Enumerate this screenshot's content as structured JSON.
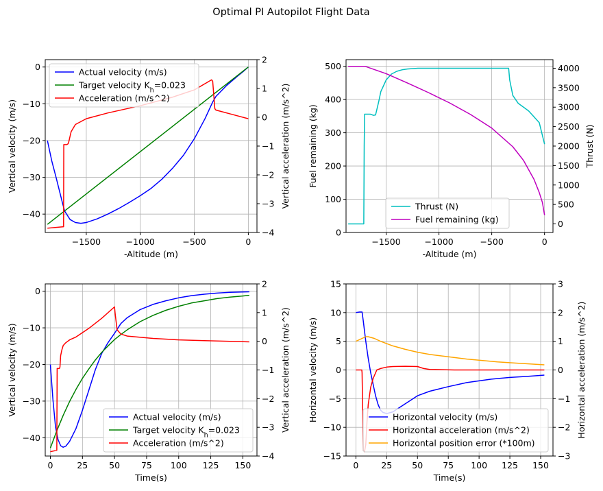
{
  "figure": {
    "title": "Optimal PI Autopilot Flight Data"
  },
  "chart_data": [
    {
      "type": "line",
      "xlabel": "-Altitude (m)",
      "ylabel": "Vertical velocity (m/s)",
      "y2label": "Vertical acceleration (m/s^2)",
      "xlim": [
        -1880,
        80
      ],
      "ylim": [
        -45,
        2
      ],
      "y2lim": [
        -4,
        2
      ],
      "xticks": [
        -1500,
        -1000,
        -500,
        0
      ],
      "yticks": [
        -40,
        -30,
        -20,
        -10,
        0
      ],
      "y2ticks": [
        -4,
        -3,
        -2,
        -1,
        0,
        1,
        2
      ],
      "grid": true,
      "legend_position": "upper left",
      "series": [
        {
          "name": "Actual velocity (m/s)",
          "color": "#0000ff",
          "axis": "y",
          "x": [
            -1860,
            -1820,
            -1780,
            -1750,
            -1720,
            -1700,
            -1650,
            -1600,
            -1550,
            -1500,
            -1400,
            -1300,
            -1200,
            -1100,
            -1000,
            -900,
            -800,
            -700,
            -600,
            -500,
            -400,
            -330,
            -300,
            -200,
            -100,
            -50,
            0
          ],
          "y": [
            -20,
            -25.5,
            -30,
            -33.5,
            -37,
            -39.2,
            -41.5,
            -42.3,
            -42.5,
            -42.3,
            -41.3,
            -40,
            -38.5,
            -36.8,
            -35,
            -33,
            -30.5,
            -27.5,
            -24,
            -19.5,
            -14,
            -9.5,
            -8,
            -5,
            -2.5,
            -1.3,
            0
          ]
        },
        {
          "name": "Target velocity K$_h$=0.023",
          "color": "#008000",
          "axis": "y",
          "x": [
            -1860,
            0
          ],
          "y": [
            -42.8,
            0
          ]
        },
        {
          "name": "Acceleration (m/s^2)",
          "color": "#ff0000",
          "axis": "y2",
          "x": [
            -1860,
            -1710,
            -1708,
            -1700,
            -1690,
            -1680,
            -1672,
            -1665,
            -1640,
            -1600,
            -1500,
            -1300,
            -1000,
            -700,
            -500,
            -340,
            -330,
            -310,
            -300,
            -250,
            -150,
            0
          ],
          "y": [
            -3.85,
            -3.8,
            -0.95,
            -0.95,
            -0.95,
            -0.95,
            -0.93,
            -0.9,
            -0.5,
            -0.25,
            -0.05,
            0.15,
            0.4,
            0.7,
            0.95,
            1.3,
            1.25,
            0.3,
            0.25,
            0.2,
            0.1,
            -0.05
          ]
        }
      ]
    },
    {
      "type": "line",
      "xlabel": "-Altitude (m)",
      "ylabel": "Fuel remaining (kg)",
      "y2label": "Thrust (N)",
      "xlim": [
        -1880,
        80
      ],
      "ylim": [
        0,
        520
      ],
      "y2lim": [
        -220,
        4220
      ],
      "xticks": [
        -1500,
        -1000,
        -500,
        0
      ],
      "yticks": [
        0,
        100,
        200,
        300,
        400,
        500
      ],
      "y2ticks": [
        0,
        500,
        1000,
        1500,
        2000,
        2500,
        3000,
        3500,
        4000
      ],
      "grid": true,
      "legend_position": "lower center",
      "series": [
        {
          "name": "Thrust (N)",
          "color": "#00bfbf",
          "axis": "y2",
          "x": [
            -1860,
            -1712,
            -1708,
            -1704,
            -1650,
            -1620,
            -1600,
            -1570,
            -1550,
            -1500,
            -1450,
            -1400,
            -1350,
            -1300,
            -1200,
            -1000,
            -700,
            -500,
            -340,
            -330,
            -300,
            -250,
            -150,
            -50,
            0
          ],
          "y": [
            0,
            0,
            2020,
            2820,
            2820,
            2790,
            2800,
            3150,
            3400,
            3700,
            3850,
            3920,
            3960,
            3980,
            4000,
            4000,
            4000,
            4000,
            4000,
            3700,
            3300,
            3100,
            2900,
            2600,
            2050
          ]
        },
        {
          "name": "Fuel remaining (kg)",
          "color": "#bf00bf",
          "axis": "y",
          "x": [
            -1860,
            -1700,
            -1500,
            -1300,
            -1100,
            -900,
            -700,
            -500,
            -300,
            -200,
            -100,
            -50,
            -20,
            0
          ],
          "y": [
            500,
            500,
            478,
            450,
            421,
            390,
            355,
            314,
            258,
            217,
            160,
            120,
            90,
            52
          ]
        }
      ]
    },
    {
      "type": "line",
      "xlabel": "Time(s)",
      "ylabel": "Vertical velocity (m/s)",
      "y2label": "Vertical acceleration (m/s^2)",
      "xlim": [
        -4,
        161
      ],
      "ylim": [
        -45,
        2
      ],
      "y2lim": [
        -4,
        2
      ],
      "xticks": [
        0,
        25,
        50,
        75,
        100,
        125,
        150
      ],
      "yticks": [
        -40,
        -30,
        -20,
        -10,
        0
      ],
      "y2ticks": [
        -4,
        -3,
        -2,
        -1,
        0,
        1,
        2
      ],
      "grid": true,
      "legend_position": "lower right",
      "series": [
        {
          "name": "Actual velocity (m/s)",
          "color": "#0000ff",
          "axis": "y",
          "x": [
            0,
            2,
            4,
            6,
            8,
            10,
            12,
            15,
            20,
            25,
            30,
            35,
            40,
            45,
            50,
            55,
            60,
            70,
            80,
            90,
            100,
            110,
            120,
            130,
            140,
            150,
            155
          ],
          "y": [
            -20,
            -29.5,
            -37,
            -40.5,
            -42.2,
            -42.6,
            -42.3,
            -41,
            -37.5,
            -32.5,
            -27,
            -21.5,
            -17,
            -14,
            -11.5,
            -8.8,
            -7.2,
            -5,
            -3.6,
            -2.6,
            -1.8,
            -1.2,
            -0.8,
            -0.5,
            -0.3,
            -0.2,
            -0.15
          ]
        },
        {
          "name": "Target velocity K$_h$=0.023",
          "color": "#008000",
          "axis": "y",
          "x": [
            0,
            5,
            10,
            15,
            20,
            25,
            30,
            35,
            40,
            45,
            50,
            55,
            60,
            70,
            80,
            90,
            100,
            110,
            120,
            130,
            140,
            150,
            155
          ],
          "y": [
            -42.8,
            -38.1,
            -33.9,
            -30.1,
            -26.8,
            -23.8,
            -21.2,
            -18.8,
            -16.7,
            -14.9,
            -13.2,
            -11.8,
            -10.5,
            -8.3,
            -6.6,
            -5.2,
            -4.1,
            -3.2,
            -2.6,
            -2.0,
            -1.6,
            -1.3,
            -1.1
          ]
        },
        {
          "name": "Acceleration (m/s^2)",
          "color": "#ff0000",
          "axis": "y2",
          "x": [
            0,
            5,
            5.3,
            6,
            7,
            7.5,
            8,
            9,
            10,
            12,
            15,
            20,
            30,
            40,
            50,
            50.5,
            52,
            55,
            60,
            80,
            100,
            120,
            140,
            155
          ],
          "y": [
            -3.85,
            -3.8,
            -0.95,
            -0.95,
            -0.95,
            -0.9,
            -0.5,
            -0.3,
            -0.15,
            -0.05,
            0.05,
            0.15,
            0.45,
            0.8,
            1.2,
            0.95,
            0.4,
            0.25,
            0.18,
            0.1,
            0.05,
            0.02,
            0.0,
            -0.02
          ]
        }
      ]
    },
    {
      "type": "line",
      "xlabel": "Time(s)",
      "ylabel": "Horizontal velocity (m/s)",
      "y2label": "Horizontal acceleration (m/s^2)",
      "xlim": [
        -8,
        160
      ],
      "ylim": [
        -15,
        15
      ],
      "y2lim": [
        -3,
        3
      ],
      "xticks": [
        0,
        25,
        50,
        75,
        100,
        125,
        150
      ],
      "yticks": [
        -15,
        -10,
        -5,
        0,
        5,
        10,
        15
      ],
      "y2ticks": [
        -3,
        -2,
        -1,
        0,
        1,
        2,
        3
      ],
      "grid": true,
      "legend_position": "lower center",
      "series": [
        {
          "name": "Horizontal velocity (m/s)",
          "color": "#0000ff",
          "axis": "y",
          "x": [
            0,
            3,
            5,
            6,
            8,
            10,
            12,
            14,
            16,
            18,
            20,
            22,
            25,
            30,
            35,
            40,
            50,
            60,
            75,
            90,
            100,
            110,
            125,
            140,
            153
          ],
          "y": [
            10,
            10.1,
            10.1,
            8.5,
            5,
            2,
            -0.5,
            -2.5,
            -4.5,
            -6,
            -7,
            -7.4,
            -7.6,
            -7.3,
            -6.6,
            -5.9,
            -4.5,
            -3.7,
            -2.9,
            -2.2,
            -1.9,
            -1.6,
            -1.3,
            -1.1,
            -0.9
          ]
        },
        {
          "name": "Horizontal acceleration (m/s^2)",
          "color": "#ff0000",
          "axis": "y2",
          "x": [
            0,
            4.8,
            5,
            6,
            7,
            8,
            9,
            10,
            12,
            14,
            17,
            20,
            25,
            30,
            40,
            50,
            55,
            60,
            80,
            100,
            130,
            153
          ],
          "y": [
            0,
            0,
            -0.1,
            -2.8,
            -2.85,
            -2.6,
            -1.8,
            -1.2,
            -0.6,
            -0.3,
            0.0,
            0.05,
            0.1,
            0.12,
            0.13,
            0.12,
            0.05,
            0.02,
            0.0,
            0.0,
            0.0,
            0.0
          ]
        },
        {
          "name": "Horizontal position error (*100m)",
          "color": "#ffa500",
          "axis": "y",
          "x": [
            0,
            5,
            8,
            10,
            15,
            20,
            30,
            40,
            50,
            60,
            75,
            90,
            100,
            115,
            130,
            145,
            153
          ],
          "y": [
            5,
            5.5,
            5.8,
            5.8,
            5.5,
            5,
            4.2,
            3.6,
            3.1,
            2.7,
            2.3,
            1.9,
            1.7,
            1.4,
            1.2,
            1.0,
            0.9
          ]
        }
      ]
    }
  ]
}
